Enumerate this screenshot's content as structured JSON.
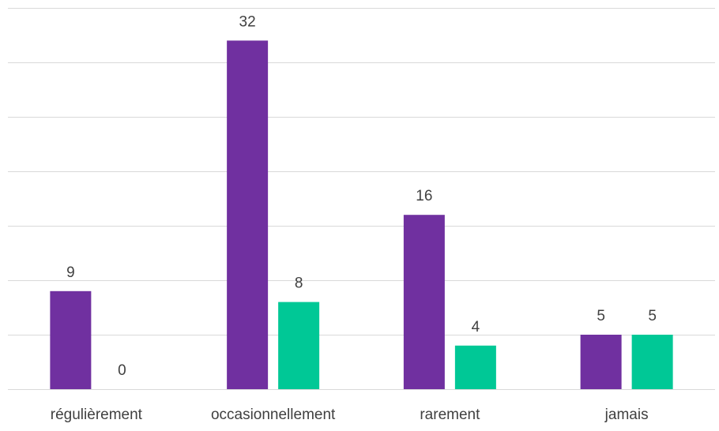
{
  "chart_data": {
    "type": "bar",
    "categories": [
      "régulièrement",
      "occasionnellement",
      "rarement",
      "jamais"
    ],
    "series": [
      {
        "values": [
          9,
          32,
          16,
          5
        ],
        "color": "#7030a0"
      },
      {
        "values": [
          0,
          8,
          4,
          5
        ],
        "color": "#00c896"
      }
    ],
    "ylim": [
      0,
      35
    ],
    "grid": true,
    "legend": "none",
    "gridline_color": "#d9d9d9",
    "label_color": "#404040"
  }
}
